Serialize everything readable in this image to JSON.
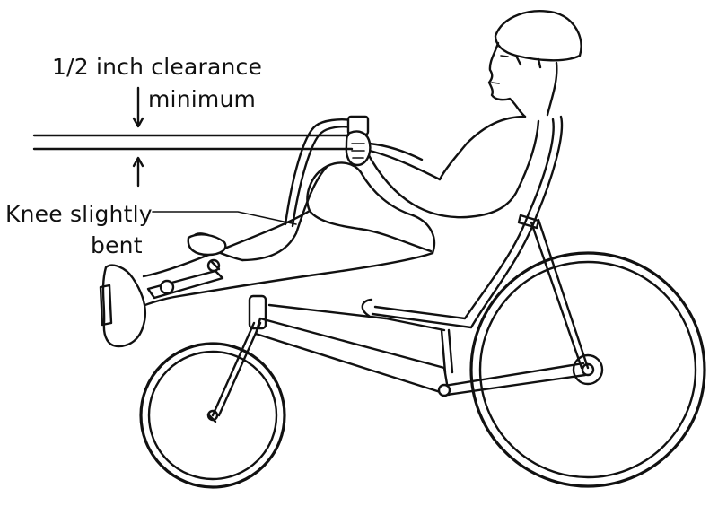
{
  "labels": {
    "clearance_line1": "1/2 inch clearance",
    "clearance_line2": "minimum",
    "knee_line1": "Knee slightly",
    "knee_line2": "bent"
  },
  "colors": {
    "ink": "#111111",
    "background": "#ffffff"
  },
  "icons": [
    "down-arrow-icon",
    "up-arrow-icon"
  ]
}
